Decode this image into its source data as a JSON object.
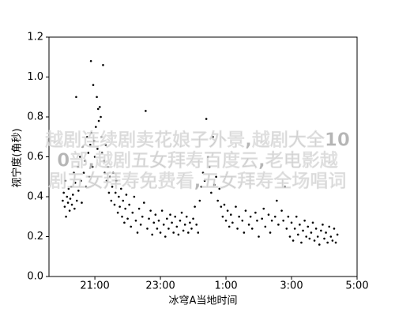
{
  "chart_data": {
    "type": "scatter",
    "xlabel": "冰穹A当地时间",
    "ylabel": "视宁度(角秒)",
    "xlim": [
      19.6,
      29
    ],
    "ylim": [
      0,
      1.2
    ],
    "xticks": [
      {
        "value": 21,
        "label": "21:00"
      },
      {
        "value": 23,
        "label": "23:00"
      },
      {
        "value": 25,
        "label": "1:00"
      },
      {
        "value": 27,
        "label": "3:00"
      },
      {
        "value": 29,
        "label": "5:00"
      }
    ],
    "yticks": [
      {
        "value": 0,
        "label": "0.0"
      },
      0.2,
      0.4,
      0.6,
      0.8,
      {
        "value": 1,
        "label": "1.0"
      },
      1.2
    ],
    "color": "#000000",
    "x": [
      20.02,
      20.05,
      20.08,
      20.1,
      20.12,
      20.15,
      20.18,
      20.2,
      20.23,
      20.25,
      20.28,
      20.3,
      20.33,
      20.36,
      20.38,
      20.4,
      20.43,
      20.45,
      20.48,
      20.5,
      20.55,
      20.58,
      20.6,
      20.63,
      20.66,
      20.7,
      20.73,
      20.76,
      20.8,
      20.83,
      20.86,
      20.88,
      20.9,
      20.93,
      20.95,
      20.98,
      21.0,
      21.03,
      21.06,
      21.08,
      21.1,
      21.12,
      21.15,
      21.18,
      21.2,
      21.22,
      21.25,
      21.28,
      21.3,
      21.33,
      21.36,
      21.4,
      21.43,
      21.46,
      21.5,
      21.53,
      21.56,
      21.6,
      21.63,
      21.66,
      21.7,
      21.73,
      21.76,
      21.8,
      21.83,
      21.86,
      21.9,
      21.93,
      21.96,
      22.0,
      22.05,
      22.1,
      22.15,
      22.2,
      22.25,
      22.3,
      22.35,
      22.4,
      22.45,
      22.5,
      22.55,
      22.6,
      22.65,
      22.7,
      22.75,
      22.8,
      22.85,
      22.9,
      22.95,
      23.0,
      23.05,
      23.1,
      23.15,
      23.2,
      23.25,
      23.3,
      23.35,
      23.4,
      23.45,
      23.5,
      23.55,
      23.6,
      23.65,
      23.7,
      23.75,
      23.8,
      23.85,
      23.9,
      23.95,
      24.0,
      24.05,
      24.1,
      24.15,
      24.2,
      24.25,
      24.3,
      24.35,
      24.4,
      24.45,
      24.5,
      24.55,
      24.6,
      24.65,
      24.7,
      24.75,
      24.8,
      24.85,
      24.9,
      24.95,
      25.0,
      25.05,
      25.1,
      25.15,
      25.2,
      25.3,
      25.35,
      25.4,
      25.5,
      25.55,
      25.6,
      25.7,
      25.75,
      25.8,
      25.9,
      25.95,
      26.0,
      26.1,
      26.15,
      26.2,
      26.3,
      26.35,
      26.4,
      26.5,
      26.55,
      26.6,
      26.7,
      26.75,
      26.8,
      26.85,
      26.9,
      26.95,
      27.0,
      27.05,
      27.1,
      27.15,
      27.2,
      27.25,
      27.3,
      27.35,
      27.4,
      27.45,
      27.5,
      27.55,
      27.6,
      27.65,
      27.7,
      27.75,
      27.8,
      27.85,
      27.9,
      27.95,
      28.0,
      28.05,
      28.1,
      28.15,
      28.2,
      28.25,
      28.3,
      28.35,
      28.4
    ],
    "values": [
      0.38,
      0.42,
      0.35,
      0.48,
      0.3,
      0.4,
      0.37,
      0.44,
      0.33,
      0.39,
      0.45,
      0.36,
      0.41,
      0.52,
      0.34,
      0.47,
      0.9,
      0.38,
      0.55,
      0.43,
      0.6,
      0.48,
      0.37,
      0.65,
      0.52,
      0.58,
      0.45,
      0.7,
      0.62,
      0.5,
      0.66,
      1.08,
      0.72,
      0.55,
      0.96,
      0.68,
      0.6,
      0.75,
      0.9,
      0.64,
      0.84,
      0.78,
      0.85,
      0.8,
      0.7,
      0.62,
      1.06,
      0.58,
      0.52,
      0.66,
      0.48,
      0.55,
      0.42,
      0.5,
      0.38,
      0.45,
      0.52,
      0.36,
      0.42,
      0.48,
      0.32,
      0.4,
      0.35,
      0.44,
      0.3,
      0.38,
      0.27,
      0.34,
      0.41,
      0.29,
      0.36,
      0.25,
      0.32,
      0.4,
      0.28,
      0.22,
      0.34,
      0.26,
      0.3,
      0.37,
      0.83,
      0.24,
      0.29,
      0.33,
      0.21,
      0.27,
      0.31,
      0.24,
      0.28,
      0.22,
      0.33,
      0.26,
      0.2,
      0.29,
      0.24,
      0.31,
      0.27,
      0.22,
      0.3,
      0.25,
      0.21,
      0.28,
      0.32,
      0.23,
      0.26,
      0.3,
      0.22,
      0.27,
      0.24,
      0.29,
      0.35,
      0.26,
      0.22,
      0.38,
      0.45,
      0.52,
      0.48,
      0.79,
      0.6,
      0.55,
      0.42,
      0.7,
      0.46,
      0.5,
      0.38,
      0.44,
      0.35,
      0.3,
      0.36,
      0.28,
      0.33,
      0.25,
      0.31,
      0.27,
      0.35,
      0.24,
      0.3,
      0.28,
      0.22,
      0.33,
      0.26,
      0.3,
      0.24,
      0.32,
      0.28,
      0.2,
      0.29,
      0.34,
      0.25,
      0.31,
      0.22,
      0.28,
      0.3,
      0.38,
      0.26,
      0.33,
      0.28,
      0.45,
      0.24,
      0.3,
      0.2,
      0.27,
      0.18,
      0.24,
      0.3,
      0.21,
      0.26,
      0.17,
      0.23,
      0.28,
      0.2,
      0.25,
      0.19,
      0.22,
      0.27,
      0.18,
      0.24,
      0.2,
      0.16,
      0.23,
      0.26,
      0.19,
      0.22,
      0.17,
      0.25,
      0.2,
      0.18,
      0.24,
      0.17,
      0.21
    ]
  },
  "watermark": [
    "越剧连续剧卖花娘子外景,越剧大全10",
    "0部,越剧五女拜寿百度云,老电影越",
    "剧五女拜寿免费看,五女拜寿全场唱词"
  ]
}
